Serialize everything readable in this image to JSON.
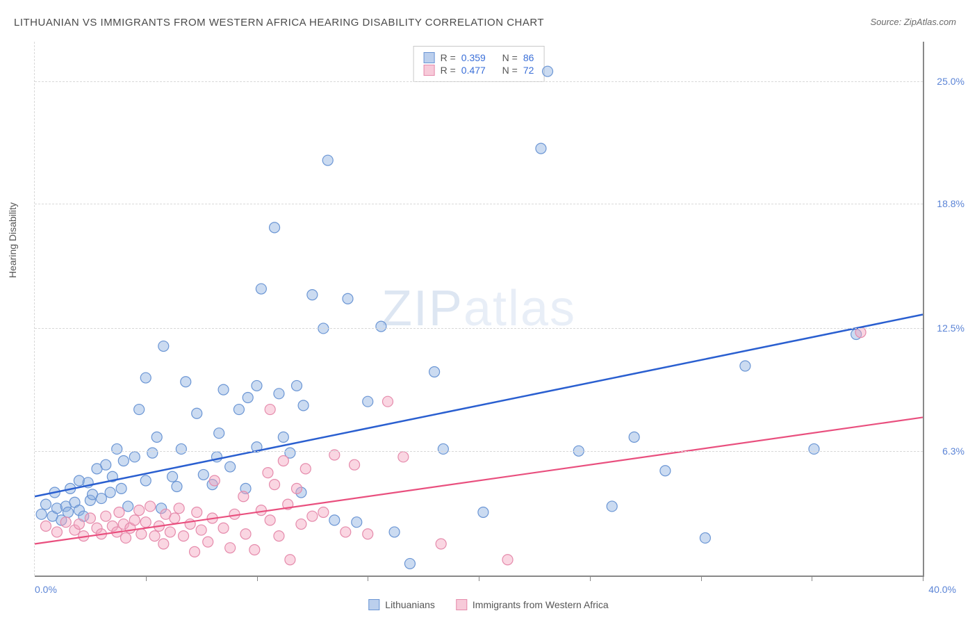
{
  "title": "LITHUANIAN VS IMMIGRANTS FROM WESTERN AFRICA HEARING DISABILITY CORRELATION CHART",
  "source_label": "Source: ZipAtlas.com",
  "watermark": {
    "strong": "ZIP",
    "light": "atlas"
  },
  "ylabel": "Hearing Disability",
  "chart": {
    "type": "scatter",
    "xlim": [
      0,
      40
    ],
    "ylim": [
      0,
      27
    ],
    "xlabel_min": "0.0%",
    "xlabel_max": "40.0%",
    "xtick_positions": [
      5,
      10,
      15,
      20,
      25,
      30,
      35,
      40
    ],
    "yticks": [
      {
        "v": 6.3,
        "label": "6.3%"
      },
      {
        "v": 12.5,
        "label": "12.5%"
      },
      {
        "v": 18.8,
        "label": "18.8%"
      },
      {
        "v": 25.0,
        "label": "25.0%"
      }
    ],
    "grid_color": "#d8d8d8",
    "background_color": "#ffffff",
    "marker_radius": 7.5,
    "series": [
      {
        "name": "Lithuanians",
        "legend_label": "Lithuanians",
        "color_fill": "rgba(140,175,225,0.45)",
        "color_stroke": "#6a95d4",
        "trend_color": "#2a5fd0",
        "trend_width": 2.5,
        "R": "0.359",
        "N": "86",
        "trend": {
          "x1": 0,
          "y1": 4.0,
          "x2": 40,
          "y2": 13.2
        },
        "points": [
          [
            0.3,
            3.1
          ],
          [
            0.5,
            3.6
          ],
          [
            0.8,
            3.0
          ],
          [
            1.0,
            3.4
          ],
          [
            1.2,
            2.8
          ],
          [
            1.4,
            3.5
          ],
          [
            1.5,
            3.2
          ],
          [
            1.8,
            3.7
          ],
          [
            2.0,
            3.3
          ],
          [
            2.2,
            3.0
          ],
          [
            2.5,
            3.8
          ],
          [
            0.9,
            4.2
          ],
          [
            1.6,
            4.4
          ],
          [
            2.0,
            4.8
          ],
          [
            2.6,
            4.1
          ],
          [
            2.4,
            4.7
          ],
          [
            2.8,
            5.4
          ],
          [
            3.0,
            3.9
          ],
          [
            3.2,
            5.6
          ],
          [
            3.4,
            4.2
          ],
          [
            3.5,
            5.0
          ],
          [
            3.7,
            6.4
          ],
          [
            3.9,
            4.4
          ],
          [
            4.0,
            5.8
          ],
          [
            4.2,
            3.5
          ],
          [
            4.5,
            6.0
          ],
          [
            4.7,
            8.4
          ],
          [
            5.0,
            4.8
          ],
          [
            5.3,
            6.2
          ],
          [
            5.5,
            7.0
          ],
          [
            5.7,
            3.4
          ],
          [
            5.8,
            11.6
          ],
          [
            5.0,
            10.0
          ],
          [
            6.2,
            5.0
          ],
          [
            6.4,
            4.5
          ],
          [
            6.6,
            6.4
          ],
          [
            6.8,
            9.8
          ],
          [
            7.3,
            8.2
          ],
          [
            7.6,
            5.1
          ],
          [
            8.0,
            4.6
          ],
          [
            8.2,
            6.0
          ],
          [
            8.3,
            7.2
          ],
          [
            8.5,
            9.4
          ],
          [
            8.8,
            5.5
          ],
          [
            9.2,
            8.4
          ],
          [
            9.5,
            4.4
          ],
          [
            9.6,
            9.0
          ],
          [
            10.0,
            6.5
          ],
          [
            10.0,
            9.6
          ],
          [
            10.2,
            14.5
          ],
          [
            10.8,
            17.6
          ],
          [
            11.0,
            9.2
          ],
          [
            11.2,
            7.0
          ],
          [
            11.5,
            6.2
          ],
          [
            11.8,
            9.6
          ],
          [
            12.0,
            4.2
          ],
          [
            12.1,
            8.6
          ],
          [
            12.5,
            14.2
          ],
          [
            13.0,
            12.5
          ],
          [
            13.2,
            21.0
          ],
          [
            13.5,
            2.8
          ],
          [
            14.1,
            14.0
          ],
          [
            14.5,
            2.7
          ],
          [
            15.0,
            8.8
          ],
          [
            15.6,
            12.6
          ],
          [
            16.2,
            2.2
          ],
          [
            16.9,
            0.6
          ],
          [
            18.0,
            10.3
          ],
          [
            18.4,
            6.4
          ],
          [
            20.2,
            3.2
          ],
          [
            22.8,
            21.6
          ],
          [
            23.1,
            25.5
          ],
          [
            24.5,
            6.3
          ],
          [
            26.0,
            3.5
          ],
          [
            27.0,
            7.0
          ],
          [
            28.4,
            5.3
          ],
          [
            30.2,
            1.9
          ],
          [
            32.0,
            10.6
          ],
          [
            35.1,
            6.4
          ],
          [
            37.0,
            12.2
          ]
        ]
      },
      {
        "name": "Immigrants from Western Africa",
        "legend_label": "Immigrants from Western Africa",
        "color_fill": "rgba(245,165,190,0.45)",
        "color_stroke": "#e58aab",
        "trend_color": "#e94f7e",
        "trend_width": 2.2,
        "R": "0.477",
        "N": "72",
        "trend": {
          "x1": 0,
          "y1": 1.6,
          "x2": 40,
          "y2": 8.0
        },
        "points": [
          [
            0.5,
            2.5
          ],
          [
            1.0,
            2.2
          ],
          [
            1.4,
            2.7
          ],
          [
            1.8,
            2.3
          ],
          [
            2.0,
            2.6
          ],
          [
            2.2,
            2.0
          ],
          [
            2.5,
            2.9
          ],
          [
            2.8,
            2.4
          ],
          [
            3.0,
            2.1
          ],
          [
            3.2,
            3.0
          ],
          [
            3.5,
            2.5
          ],
          [
            3.7,
            2.2
          ],
          [
            3.8,
            3.2
          ],
          [
            4.0,
            2.6
          ],
          [
            4.1,
            1.9
          ],
          [
            4.3,
            2.4
          ],
          [
            4.5,
            2.8
          ],
          [
            4.7,
            3.3
          ],
          [
            4.8,
            2.1
          ],
          [
            5.0,
            2.7
          ],
          [
            5.2,
            3.5
          ],
          [
            5.4,
            2.0
          ],
          [
            5.6,
            2.5
          ],
          [
            5.8,
            1.6
          ],
          [
            5.9,
            3.1
          ],
          [
            6.1,
            2.2
          ],
          [
            6.3,
            2.9
          ],
          [
            6.5,
            3.4
          ],
          [
            6.7,
            2.0
          ],
          [
            7.0,
            2.6
          ],
          [
            7.2,
            1.2
          ],
          [
            7.3,
            3.2
          ],
          [
            7.5,
            2.3
          ],
          [
            7.8,
            1.7
          ],
          [
            8.0,
            2.9
          ],
          [
            8.1,
            4.8
          ],
          [
            8.5,
            2.4
          ],
          [
            8.8,
            1.4
          ],
          [
            9.0,
            3.1
          ],
          [
            9.4,
            4.0
          ],
          [
            9.5,
            2.1
          ],
          [
            9.9,
            1.3
          ],
          [
            10.2,
            3.3
          ],
          [
            10.5,
            5.2
          ],
          [
            10.6,
            2.8
          ],
          [
            10.8,
            4.6
          ],
          [
            10.6,
            8.4
          ],
          [
            11.0,
            2.0
          ],
          [
            11.2,
            5.8
          ],
          [
            11.4,
            3.6
          ],
          [
            11.5,
            0.8
          ],
          [
            11.8,
            4.4
          ],
          [
            12.0,
            2.6
          ],
          [
            12.2,
            5.4
          ],
          [
            12.5,
            3.0
          ],
          [
            13.0,
            3.2
          ],
          [
            13.5,
            6.1
          ],
          [
            14.0,
            2.2
          ],
          [
            14.4,
            5.6
          ],
          [
            15.0,
            2.1
          ],
          [
            15.9,
            8.8
          ],
          [
            16.6,
            6.0
          ],
          [
            18.3,
            1.6
          ],
          [
            21.3,
            0.8
          ],
          [
            37.2,
            12.3
          ]
        ]
      }
    ]
  },
  "correlation_labels": {
    "R": "R =",
    "N": "N ="
  }
}
